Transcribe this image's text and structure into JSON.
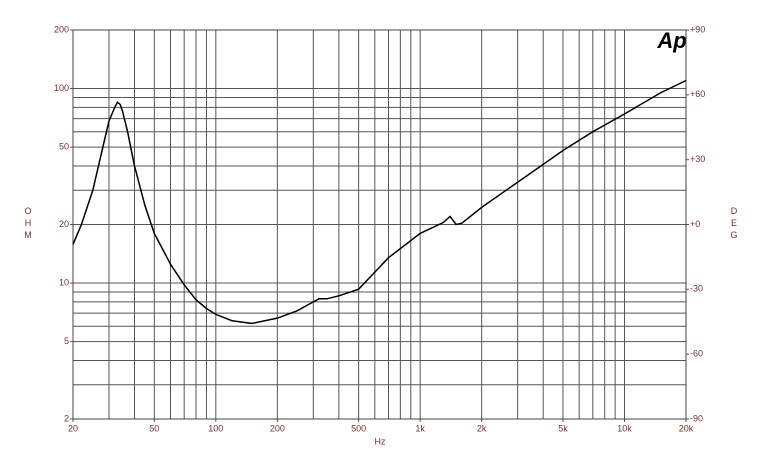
{
  "chart_data": {
    "type": "line",
    "logo": "Ap",
    "xlabel": "Hz",
    "ylabel": "OHM",
    "y2label": "DEG",
    "x": [
      20,
      22,
      25,
      28,
      30,
      32,
      33,
      34,
      35,
      37,
      40,
      45,
      50,
      60,
      70,
      80,
      90,
      100,
      120,
      150,
      200,
      250,
      300,
      320,
      350,
      400,
      500,
      700,
      1000,
      1300,
      1400,
      1500,
      1600,
      2000,
      3000,
      5000,
      7000,
      10000,
      15000,
      20000
    ],
    "series": [
      {
        "color": "#000000",
        "values": [
          15.8,
          20,
          30,
          50,
          68,
          80,
          85,
          83,
          76,
          60,
          40,
          25,
          18,
          12.5,
          9.8,
          8.2,
          7.4,
          6.9,
          6.4,
          6.2,
          6.6,
          7.2,
          8.0,
          8.3,
          8.3,
          8.6,
          9.3,
          13.5,
          18,
          20.5,
          22,
          20,
          20.3,
          24.5,
          33,
          48,
          60,
          74,
          95,
          110
        ]
      }
    ],
    "xscale": "log",
    "yscale": "log",
    "xlim": [
      20,
      20000
    ],
    "ylim": [
      2,
      200
    ],
    "y2lim": [
      -90,
      90
    ],
    "xticks": [
      20,
      50,
      100,
      200,
      500,
      {
        "value": 1000,
        "label": "1k"
      },
      {
        "value": 2000,
        "label": "2k"
      },
      {
        "value": 5000,
        "label": "5k"
      },
      {
        "value": 10000,
        "label": "10k"
      },
      {
        "value": 20000,
        "label": "20k"
      }
    ],
    "yticks": [
      2,
      5,
      10,
      20,
      50,
      100,
      200
    ],
    "y2ticks": [
      {
        "value": -90,
        "label": "-90"
      },
      -60,
      -30,
      {
        "value": 0,
        "label": "+0"
      },
      {
        "value": 30,
        "label": "+30"
      },
      {
        "value": 60,
        "label": "+60"
      },
      {
        "value": 90,
        "label": "+90"
      }
    ],
    "xgrid": [
      20,
      30,
      40,
      50,
      60,
      70,
      80,
      90,
      100,
      200,
      300,
      400,
      500,
      600,
      700,
      800,
      900,
      1000,
      2000,
      3000,
      4000,
      5000,
      6000,
      7000,
      8000,
      9000,
      10000,
      20000
    ],
    "ygrid": [
      2,
      3,
      4,
      5,
      6,
      7,
      8,
      9,
      10,
      20,
      30,
      40,
      50,
      60,
      70,
      80,
      90,
      100,
      200
    ],
    "grid": true
  }
}
